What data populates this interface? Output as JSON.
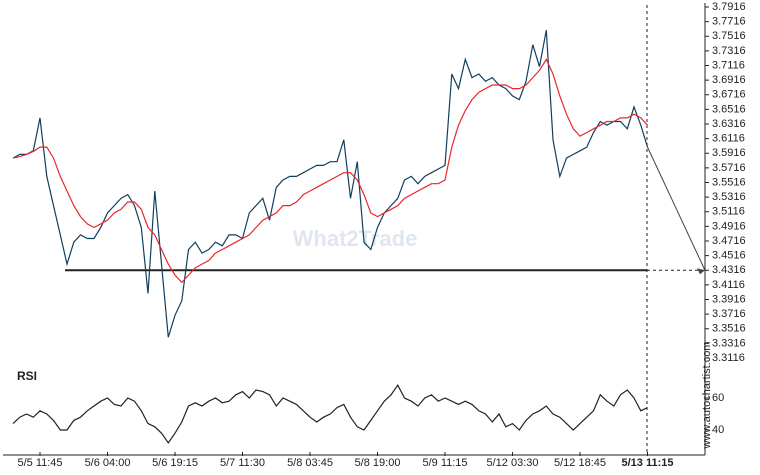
{
  "watermark": "What2Trade",
  "brand": "www.autochartist.com",
  "chart_data": [
    {
      "type": "line",
      "level": 3.4316,
      "level_color": "#222",
      "xticks": [
        {
          "value": 4,
          "label": "5/5 11:45"
        },
        {
          "value": 14,
          "label": "5/6 04:00"
        },
        {
          "value": 24,
          "label": "5/6 19:15"
        },
        {
          "value": 34,
          "label": "5/7 11:30"
        },
        {
          "value": 44,
          "label": "5/8 03:45"
        },
        {
          "value": 54,
          "label": "5/8 19:00"
        },
        {
          "value": 64,
          "label": "5/9 11:15"
        },
        {
          "value": 74,
          "label": "5/12 03:30"
        },
        {
          "value": 84,
          "label": "5/12 18:45"
        },
        {
          "value": 94,
          "label": "5/13 11:15"
        }
      ],
      "ylim": [
        3.3116,
        3.7916
      ],
      "yticks": [
        3.3116,
        3.3316,
        3.3516,
        3.3716,
        3.3916,
        3.4116,
        3.4316,
        3.4516,
        3.4716,
        3.4916,
        3.5116,
        3.5316,
        3.5516,
        3.5716,
        3.5916,
        3.6116,
        3.6316,
        3.6516,
        3.6716,
        3.6916,
        3.7116,
        3.7316,
        3.7516,
        3.7716,
        3.7916
      ],
      "series": [
        {
          "color": "#0f3f5e",
          "values": [
            3.585,
            3.59,
            3.59,
            3.595,
            3.64,
            3.56,
            3.52,
            3.48,
            3.44,
            3.47,
            3.48,
            3.475,
            3.475,
            3.49,
            3.51,
            3.52,
            3.53,
            3.535,
            3.52,
            3.49,
            3.4,
            3.54,
            3.44,
            3.34,
            3.37,
            3.39,
            3.46,
            3.47,
            3.455,
            3.46,
            3.47,
            3.465,
            3.48,
            3.48,
            3.475,
            3.51,
            3.52,
            3.53,
            3.5,
            3.545,
            3.555,
            3.56,
            3.56,
            3.565,
            3.57,
            3.575,
            3.575,
            3.58,
            3.58,
            3.61,
            3.53,
            3.58,
            3.47,
            3.46,
            3.49,
            3.51,
            3.52,
            3.53,
            3.555,
            3.56,
            3.55,
            3.56,
            3.565,
            3.57,
            3.575,
            3.7,
            3.68,
            3.72,
            3.695,
            3.7,
            3.69,
            3.695,
            3.685,
            3.68,
            3.67,
            3.665,
            3.69,
            3.74,
            3.71,
            3.76,
            3.61,
            3.56,
            3.585,
            3.59,
            3.595,
            3.6,
            3.62,
            3.635,
            3.63,
            3.635,
            3.635,
            3.625,
            3.655,
            3.63,
            3.6
          ]
        },
        {
          "color": "#e8262a",
          "values": [
            3.585,
            3.587,
            3.59,
            3.594,
            3.6,
            3.6,
            3.585,
            3.56,
            3.54,
            3.52,
            3.505,
            3.495,
            3.49,
            3.495,
            3.5,
            3.51,
            3.515,
            3.525,
            3.525,
            3.515,
            3.49,
            3.48,
            3.46,
            3.44,
            3.425,
            3.415,
            3.425,
            3.435,
            3.44,
            3.445,
            3.455,
            3.46,
            3.465,
            3.47,
            3.475,
            3.48,
            3.49,
            3.5,
            3.505,
            3.51,
            3.52,
            3.52,
            3.525,
            3.535,
            3.54,
            3.545,
            3.55,
            3.555,
            3.56,
            3.565,
            3.565,
            3.555,
            3.535,
            3.51,
            3.505,
            3.51,
            3.515,
            3.52,
            3.53,
            3.535,
            3.54,
            3.545,
            3.55,
            3.55,
            3.555,
            3.6,
            3.63,
            3.65,
            3.665,
            3.675,
            3.68,
            3.685,
            3.685,
            3.685,
            3.68,
            3.68,
            3.685,
            3.695,
            3.705,
            3.72,
            3.7,
            3.67,
            3.645,
            3.625,
            3.615,
            3.62,
            3.625,
            3.63,
            3.635,
            3.635,
            3.64,
            3.64,
            3.645,
            3.64,
            3.63
          ]
        }
      ]
    },
    {
      "type": "line",
      "title": "RSI",
      "ylim": [
        27.5,
        71.25
      ],
      "yticks": [
        40,
        60
      ],
      "series": [
        {
          "color": "#222",
          "values": [
            44,
            48,
            50,
            48,
            52,
            50,
            46,
            40,
            40,
            46,
            48,
            52,
            55,
            58,
            60,
            56,
            55,
            60,
            58,
            52,
            44,
            42,
            38,
            32,
            38,
            45,
            55,
            57,
            55,
            58,
            60,
            57,
            58,
            62,
            64,
            60,
            65,
            64,
            62,
            55,
            60,
            58,
            56,
            52,
            48,
            45,
            48,
            50,
            54,
            56,
            48,
            42,
            40,
            46,
            52,
            58,
            62,
            68,
            60,
            58,
            55,
            60,
            62,
            58,
            60,
            58,
            56,
            58,
            56,
            52,
            50,
            45,
            50,
            42,
            44,
            40,
            46,
            50,
            52,
            55,
            50,
            48,
            44,
            40,
            44,
            48,
            52,
            62,
            58,
            55,
            62,
            65,
            60,
            52,
            54
          ]
        }
      ]
    }
  ]
}
